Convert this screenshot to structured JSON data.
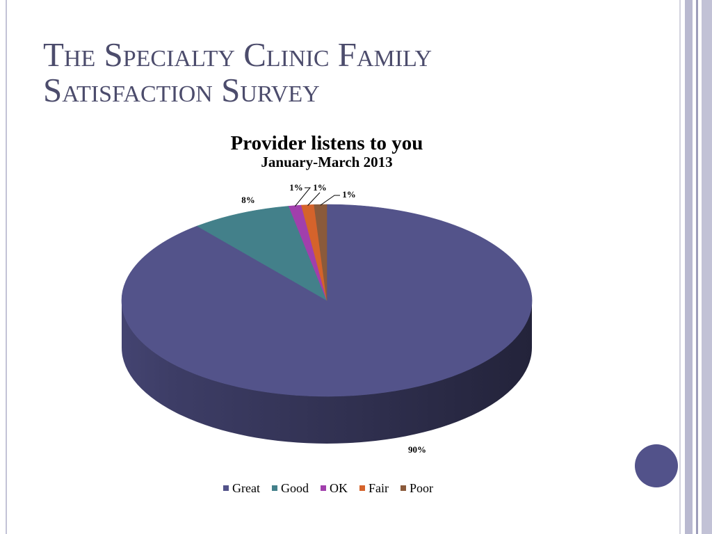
{
  "slide": {
    "title_lines": [
      "The Specialty Clinic Family",
      "Satisfaction Survey"
    ]
  },
  "chart_data": {
    "type": "pie",
    "title": "Provider listens to you",
    "subtitle": "January-March 2013",
    "categories": [
      "Great",
      "Good",
      "OK",
      "Fair",
      "Poor"
    ],
    "values": [
      90,
      8,
      1,
      1,
      1
    ],
    "data_labels": [
      "90%",
      "8%",
      "1%",
      "1%",
      "1%"
    ],
    "colors": [
      "#53538a",
      "#43808a",
      "#a13fac",
      "#d5632b",
      "#8a5a3b"
    ],
    "legend_position": "bottom"
  },
  "theme": {
    "title_color": "#4c4c6c",
    "accent": "#52528a"
  }
}
